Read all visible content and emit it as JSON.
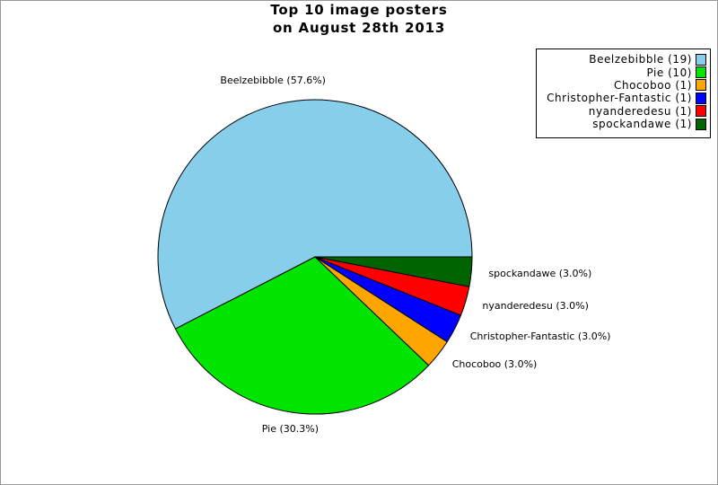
{
  "figure": {
    "background": "#ffffff",
    "border_color": "#999999"
  },
  "title": {
    "line1": "Top 10 image posters",
    "line2": "on August 28th 2013"
  },
  "chart_data": {
    "type": "pie",
    "title": "Top 10 image posters on August 28th 2013",
    "start_angle_deg": 0,
    "direction": "counterclockwise",
    "stroke_color": "#000000",
    "legend_position": "upper-right",
    "slices": [
      {
        "name": "Beelzebibble",
        "count": 19,
        "percent": 57.6,
        "label": "Beelzebibble (57.6%)",
        "legend_label": "Beelzebibble (19)",
        "color": "#87CEEB"
      },
      {
        "name": "Pie",
        "count": 10,
        "percent": 30.3,
        "label": "Pie (30.3%)",
        "legend_label": "Pie (10)",
        "color": "#00E400"
      },
      {
        "name": "Chocoboo",
        "count": 1,
        "percent": 3.0,
        "label": "Chocoboo (3.0%)",
        "legend_label": "Chocoboo (1)",
        "color": "#FFA500"
      },
      {
        "name": "Christopher-Fantastic",
        "count": 1,
        "percent": 3.0,
        "label": "Christopher-Fantastic (3.0%)",
        "legend_label": "Christopher-Fantastic (1)",
        "color": "#0000FF"
      },
      {
        "name": "nyanderedesu",
        "count": 1,
        "percent": 3.0,
        "label": "nyanderedesu (3.0%)",
        "legend_label": "nyanderedesu (1)",
        "color": "#FF0000"
      },
      {
        "name": "spockandawe",
        "count": 1,
        "percent": 3.0,
        "label": "spockandawe (3.0%)",
        "legend_label": "spockandawe (1)",
        "color": "#006400"
      }
    ]
  }
}
